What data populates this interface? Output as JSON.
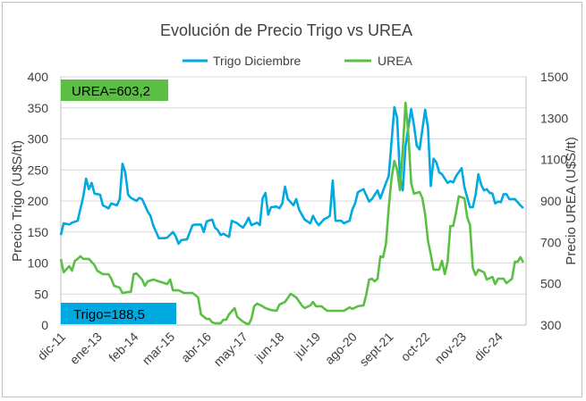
{
  "chart_data": {
    "type": "line",
    "title": "Evolución de Precio Trigo vs UREA",
    "xlabel": "",
    "x_unit": "months since dic-11",
    "x_range": [
      0,
      166
    ],
    "x_ticks": [
      0,
      13,
      26,
      39,
      52,
      65,
      78,
      91,
      104,
      117,
      130,
      143,
      156
    ],
    "x_tick_labels": [
      "dic-11",
      "ene-13",
      "feb-14",
      "mar-15",
      "abr-16",
      "may-17",
      "jun-18",
      "jul-19",
      "ago-20",
      "sept-21",
      "oct-22",
      "nov-23",
      "dic-24"
    ],
    "ylabel_left": "Precio Trigo (U$S/tt)",
    "ylabel_right": "Precio UREA (U$S/tt)",
    "ylim_left": [
      0,
      400
    ],
    "ylim_right": [
      300,
      1500
    ],
    "y_ticks_left": [
      0,
      50,
      100,
      150,
      200,
      250,
      300,
      350,
      400
    ],
    "y_ticks_right": [
      300,
      500,
      700,
      900,
      1100,
      1300,
      1500
    ],
    "grid": true,
    "legend_position": "top",
    "series": [
      {
        "name": "Trigo Diciembre",
        "axis": "left",
        "color": "#00A9E0",
        "points": [
          [
            0,
            145
          ],
          [
            1,
            164
          ],
          [
            3,
            162
          ],
          [
            4,
            165
          ],
          [
            6,
            168
          ],
          [
            8,
            207
          ],
          [
            9,
            236
          ],
          [
            10,
            219
          ],
          [
            11,
            229
          ],
          [
            12,
            212
          ],
          [
            14,
            210
          ],
          [
            15,
            193
          ],
          [
            17,
            188
          ],
          [
            18,
            196
          ],
          [
            20,
            193
          ],
          [
            21,
            203
          ],
          [
            22,
            260
          ],
          [
            23,
            246
          ],
          [
            24,
            210
          ],
          [
            25,
            205
          ],
          [
            27,
            200
          ],
          [
            28,
            205
          ],
          [
            29,
            203
          ],
          [
            31,
            183
          ],
          [
            32,
            176
          ],
          [
            33,
            160
          ],
          [
            35,
            140
          ],
          [
            37,
            140
          ],
          [
            38,
            141
          ],
          [
            40,
            150
          ],
          [
            41,
            143
          ],
          [
            42,
            131
          ],
          [
            43,
            137
          ],
          [
            45,
            138
          ],
          [
            47,
            161
          ],
          [
            48,
            162
          ],
          [
            50,
            162
          ],
          [
            51,
            150
          ],
          [
            52,
            167
          ],
          [
            54,
            170
          ],
          [
            55,
            157
          ],
          [
            56,
            153
          ],
          [
            57,
            145
          ],
          [
            58,
            147
          ],
          [
            60,
            142
          ],
          [
            61,
            168
          ],
          [
            63,
            164
          ],
          [
            64,
            160
          ],
          [
            65,
            157
          ],
          [
            66,
            164
          ],
          [
            67,
            173
          ],
          [
            68,
            161
          ],
          [
            70,
            165
          ],
          [
            71,
            161
          ],
          [
            72,
            204
          ],
          [
            73,
            213
          ],
          [
            74,
            178
          ],
          [
            75,
            190
          ],
          [
            77,
            191
          ],
          [
            78,
            188
          ],
          [
            79,
            196
          ],
          [
            80,
            223
          ],
          [
            81,
            203
          ],
          [
            83,
            193
          ],
          [
            84,
            203
          ],
          [
            85,
            186
          ],
          [
            87,
            170
          ],
          [
            89,
            164
          ],
          [
            90,
            176
          ],
          [
            91,
            167
          ],
          [
            92,
            161
          ],
          [
            94,
            171
          ],
          [
            95,
            173
          ],
          [
            96,
            176
          ],
          [
            97,
            233
          ],
          [
            98,
            168
          ],
          [
            100,
            168
          ],
          [
            101,
            164
          ],
          [
            103,
            168
          ],
          [
            104,
            186
          ],
          [
            105,
            196
          ],
          [
            106,
            214
          ],
          [
            108,
            219
          ],
          [
            110,
            199
          ],
          [
            111,
            203
          ],
          [
            113,
            217
          ],
          [
            114,
            204
          ],
          [
            116,
            229
          ],
          [
            117,
            240
          ],
          [
            119,
            351
          ],
          [
            120,
            334
          ],
          [
            121,
            240
          ],
          [
            122,
            217
          ],
          [
            123,
            289
          ],
          [
            125,
            348
          ],
          [
            126,
            322
          ],
          [
            127,
            289
          ],
          [
            128,
            283
          ],
          [
            130,
            347
          ],
          [
            131,
            318
          ],
          [
            132,
            224
          ],
          [
            133,
            268
          ],
          [
            134,
            262
          ],
          [
            135,
            246
          ],
          [
            136,
            243
          ],
          [
            138,
            229
          ],
          [
            139,
            232
          ],
          [
            140,
            230
          ],
          [
            141,
            240
          ],
          [
            143,
            253
          ],
          [
            144,
            222
          ],
          [
            146,
            190
          ],
          [
            147,
            190
          ],
          [
            148,
            210
          ],
          [
            149,
            243
          ],
          [
            150,
            226
          ],
          [
            151,
            217
          ],
          [
            152,
            219
          ],
          [
            153,
            213
          ],
          [
            154,
            212
          ],
          [
            155,
            196
          ],
          [
            156,
            199
          ],
          [
            157,
            198
          ],
          [
            158,
            211
          ],
          [
            159,
            211
          ],
          [
            160,
            203
          ],
          [
            162,
            203
          ],
          [
            163,
            198
          ],
          [
            164,
            193
          ],
          [
            165,
            188.5
          ]
        ]
      },
      {
        "name": "UREA",
        "axis": "right",
        "color": "#5BBF45",
        "points": [
          [
            0,
            619
          ],
          [
            1,
            555
          ],
          [
            3,
            585
          ],
          [
            4,
            563
          ],
          [
            5,
            611
          ],
          [
            6,
            620
          ],
          [
            7,
            633
          ],
          [
            8,
            620
          ],
          [
            10,
            620
          ],
          [
            12,
            590
          ],
          [
            13,
            563
          ],
          [
            15,
            546
          ],
          [
            17,
            546
          ],
          [
            18,
            524
          ],
          [
            19,
            490
          ],
          [
            21,
            481
          ],
          [
            22,
            455
          ],
          [
            24,
            460
          ],
          [
            25,
            460
          ],
          [
            26,
            546
          ],
          [
            27,
            550
          ],
          [
            29,
            520
          ],
          [
            30,
            490
          ],
          [
            31,
            511
          ],
          [
            33,
            520
          ],
          [
            35,
            511
          ],
          [
            36,
            507
          ],
          [
            38,
            498
          ],
          [
            39,
            520
          ],
          [
            40,
            468
          ],
          [
            42,
            468
          ],
          [
            44,
            455
          ],
          [
            46,
            455
          ],
          [
            47,
            455
          ],
          [
            49,
            434
          ],
          [
            50,
            352
          ],
          [
            52,
            330
          ],
          [
            53,
            330
          ],
          [
            54,
            313
          ],
          [
            55,
            309
          ],
          [
            57,
            309
          ],
          [
            58,
            326
          ],
          [
            59,
            326
          ],
          [
            60,
            352
          ],
          [
            62,
            382
          ],
          [
            63,
            339
          ],
          [
            65,
            317
          ],
          [
            66,
            309
          ],
          [
            67,
            304
          ],
          [
            68,
            330
          ],
          [
            69,
            391
          ],
          [
            70,
            404
          ],
          [
            72,
            391
          ],
          [
            73,
            382
          ],
          [
            75,
            373
          ],
          [
            77,
            369
          ],
          [
            78,
            399
          ],
          [
            80,
            412
          ],
          [
            82,
            451
          ],
          [
            84,
            434
          ],
          [
            86,
            395
          ],
          [
            87,
            382
          ],
          [
            89,
            395
          ],
          [
            90,
            412
          ],
          [
            91,
            391
          ],
          [
            93,
            391
          ],
          [
            95,
            369
          ],
          [
            97,
            369
          ],
          [
            99,
            369
          ],
          [
            101,
            369
          ],
          [
            103,
            386
          ],
          [
            104,
            378
          ],
          [
            106,
            391
          ],
          [
            108,
            395
          ],
          [
            109,
            447
          ],
          [
            110,
            520
          ],
          [
            111,
            524
          ],
          [
            112,
            511
          ],
          [
            113,
            524
          ],
          [
            114,
            632
          ],
          [
            115,
            628
          ],
          [
            116,
            693
          ],
          [
            117,
            866
          ],
          [
            118,
            1008
          ],
          [
            119,
            1094
          ],
          [
            120,
            1051
          ],
          [
            121,
            952
          ],
          [
            122,
            1150
          ],
          [
            123,
            1375
          ],
          [
            124,
            1224
          ],
          [
            125,
            986
          ],
          [
            126,
            935
          ],
          [
            128,
            943
          ],
          [
            129,
            913
          ],
          [
            130,
            835
          ],
          [
            131,
            706
          ],
          [
            132,
            641
          ],
          [
            133,
            568
          ],
          [
            135,
            568
          ],
          [
            136,
            611
          ],
          [
            137,
            546
          ],
          [
            138,
            606
          ],
          [
            139,
            779
          ],
          [
            140,
            779
          ],
          [
            141,
            844
          ],
          [
            142,
            922
          ],
          [
            144,
            913
          ],
          [
            145,
            822
          ],
          [
            146,
            784
          ],
          [
            147,
            576
          ],
          [
            148,
            542
          ],
          [
            149,
            568
          ],
          [
            151,
            555
          ],
          [
            152,
            520
          ],
          [
            154,
            533
          ],
          [
            155,
            498
          ],
          [
            156,
            524
          ],
          [
            158,
            524
          ],
          [
            159,
            503
          ],
          [
            161,
            524
          ],
          [
            162,
            606
          ],
          [
            163,
            606
          ],
          [
            164,
            628
          ],
          [
            165,
            603.2
          ]
        ]
      }
    ],
    "annotations": {
      "urea_label": "UREA=603,2",
      "trigo_label": "Trigo=188,5"
    }
  }
}
